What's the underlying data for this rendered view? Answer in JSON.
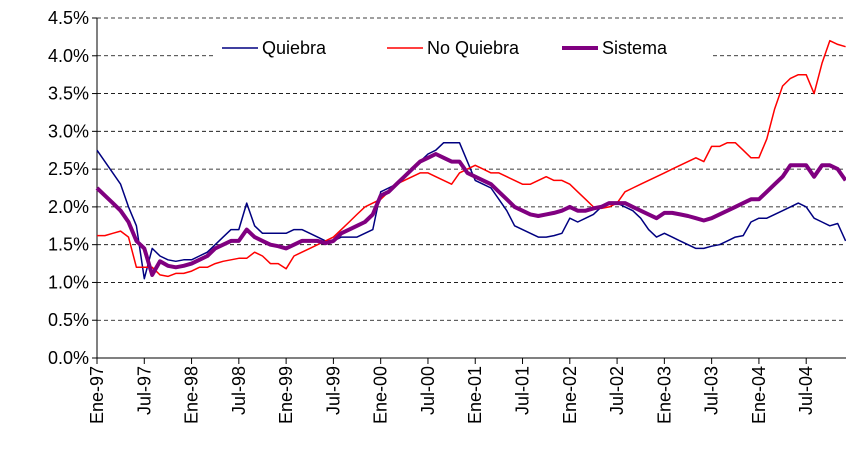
{
  "chart_data": {
    "type": "line",
    "categories": [
      "Ene-97",
      null,
      null,
      null,
      null,
      null,
      "Jul-97",
      null,
      null,
      null,
      null,
      null,
      "Ene-98",
      null,
      null,
      null,
      null,
      null,
      "Jul-98",
      null,
      null,
      null,
      null,
      null,
      "Ene-99",
      null,
      null,
      null,
      null,
      null,
      "Jul-99",
      null,
      null,
      null,
      null,
      null,
      "Ene-00",
      null,
      null,
      null,
      null,
      null,
      "Jul-00",
      null,
      null,
      null,
      null,
      null,
      "Ene-01",
      null,
      null,
      null,
      null,
      null,
      "Jul-01",
      null,
      null,
      null,
      null,
      null,
      "Ene-02",
      null,
      null,
      null,
      null,
      null,
      "Jul-02",
      null,
      null,
      null,
      null,
      null,
      "Ene-03",
      null,
      null,
      null,
      null,
      null,
      "Jul-03",
      null,
      null,
      null,
      null,
      null,
      "Ene-04",
      null,
      null,
      null,
      null,
      null,
      "Jul-04",
      null,
      null,
      null,
      null,
      null
    ],
    "series": [
      {
        "name": "Quiebra",
        "color": "#000080",
        "width": 1.5,
        "values": [
          2.75,
          2.6,
          2.45,
          2.3,
          2.0,
          1.75,
          1.05,
          1.45,
          1.35,
          1.3,
          1.28,
          1.3,
          1.3,
          1.35,
          1.4,
          1.5,
          1.6,
          1.7,
          1.7,
          2.05,
          1.75,
          1.65,
          1.65,
          1.65,
          1.65,
          1.7,
          1.7,
          1.65,
          1.6,
          1.55,
          1.55,
          1.6,
          1.6,
          1.6,
          1.65,
          1.7,
          2.2,
          2.25,
          2.3,
          2.4,
          2.5,
          2.6,
          2.7,
          2.75,
          2.85,
          2.85,
          2.85,
          2.6,
          2.35,
          2.3,
          2.25,
          2.1,
          1.95,
          1.75,
          1.7,
          1.65,
          1.6,
          1.6,
          1.62,
          1.65,
          1.85,
          1.8,
          1.85,
          1.9,
          2.0,
          2.05,
          2.05,
          2.0,
          1.95,
          1.85,
          1.7,
          1.6,
          1.65,
          1.6,
          1.55,
          1.5,
          1.45,
          1.45,
          1.48,
          1.5,
          1.55,
          1.6,
          1.62,
          1.8,
          1.85,
          1.85,
          1.9,
          1.95,
          2.0,
          2.05,
          2.0,
          1.85,
          1.8,
          1.75,
          1.78,
          1.55
        ]
      },
      {
        "name": "No Quiebra",
        "color": "#ff0000",
        "width": 1.5,
        "values": [
          1.62,
          1.62,
          1.65,
          1.68,
          1.6,
          1.2,
          1.2,
          1.2,
          1.1,
          1.08,
          1.12,
          1.12,
          1.15,
          1.2,
          1.2,
          1.25,
          1.28,
          1.3,
          1.32,
          1.32,
          1.4,
          1.35,
          1.25,
          1.25,
          1.18,
          1.35,
          1.4,
          1.45,
          1.5,
          1.55,
          1.6,
          1.7,
          1.8,
          1.9,
          2.0,
          2.05,
          2.1,
          2.2,
          2.3,
          2.35,
          2.4,
          2.45,
          2.45,
          2.4,
          2.35,
          2.3,
          2.45,
          2.5,
          2.55,
          2.5,
          2.45,
          2.45,
          2.4,
          2.35,
          2.3,
          2.3,
          2.35,
          2.4,
          2.35,
          2.35,
          2.3,
          2.2,
          2.1,
          2.0,
          1.98,
          2.0,
          2.05,
          2.2,
          2.25,
          2.3,
          2.35,
          2.4,
          2.45,
          2.5,
          2.55,
          2.6,
          2.65,
          2.6,
          2.8,
          2.8,
          2.85,
          2.85,
          2.75,
          2.65,
          2.65,
          2.9,
          3.3,
          3.6,
          3.7,
          3.75,
          3.75,
          3.5,
          3.9,
          4.2,
          4.15,
          4.12
        ]
      },
      {
        "name": "Sistema",
        "color": "#800080",
        "width": 4,
        "values": [
          2.25,
          2.15,
          2.05,
          1.95,
          1.8,
          1.55,
          1.45,
          1.1,
          1.28,
          1.22,
          1.2,
          1.22,
          1.25,
          1.3,
          1.35,
          1.45,
          1.5,
          1.55,
          1.55,
          1.7,
          1.6,
          1.55,
          1.5,
          1.48,
          1.45,
          1.5,
          1.55,
          1.55,
          1.55,
          1.52,
          1.55,
          1.65,
          1.7,
          1.75,
          1.8,
          1.9,
          2.15,
          2.2,
          2.3,
          2.4,
          2.5,
          2.6,
          2.65,
          2.7,
          2.65,
          2.6,
          2.6,
          2.45,
          2.4,
          2.35,
          2.3,
          2.2,
          2.1,
          2.0,
          1.95,
          1.9,
          1.88,
          1.9,
          1.92,
          1.95,
          2.0,
          1.95,
          1.95,
          1.98,
          2.0,
          2.05,
          2.05,
          2.05,
          2.0,
          1.95,
          1.9,
          1.85,
          1.92,
          1.92,
          1.9,
          1.88,
          1.85,
          1.82,
          1.85,
          1.9,
          1.95,
          2.0,
          2.05,
          2.1,
          2.1,
          2.2,
          2.3,
          2.4,
          2.55,
          2.55,
          2.55,
          2.4,
          2.55,
          2.55,
          2.5,
          2.35
        ]
      }
    ],
    "ylim": [
      0,
      4.5
    ],
    "yticks": [
      {
        "value": 0,
        "label": "0.0%"
      },
      {
        "value": 0.5,
        "label": "0.5%"
      },
      {
        "value": 1,
        "label": "1.0%"
      },
      {
        "value": 1.5,
        "label": "1.5%"
      },
      {
        "value": 2,
        "label": "2.0%"
      },
      {
        "value": 2.5,
        "label": "2.5%"
      },
      {
        "value": 3,
        "label": "3.0%"
      },
      {
        "value": 3.5,
        "label": "3.5%"
      },
      {
        "value": 4,
        "label": "4.0%"
      },
      {
        "value": 4.5,
        "label": "4.5%"
      }
    ],
    "grid": true,
    "legend": "top"
  }
}
